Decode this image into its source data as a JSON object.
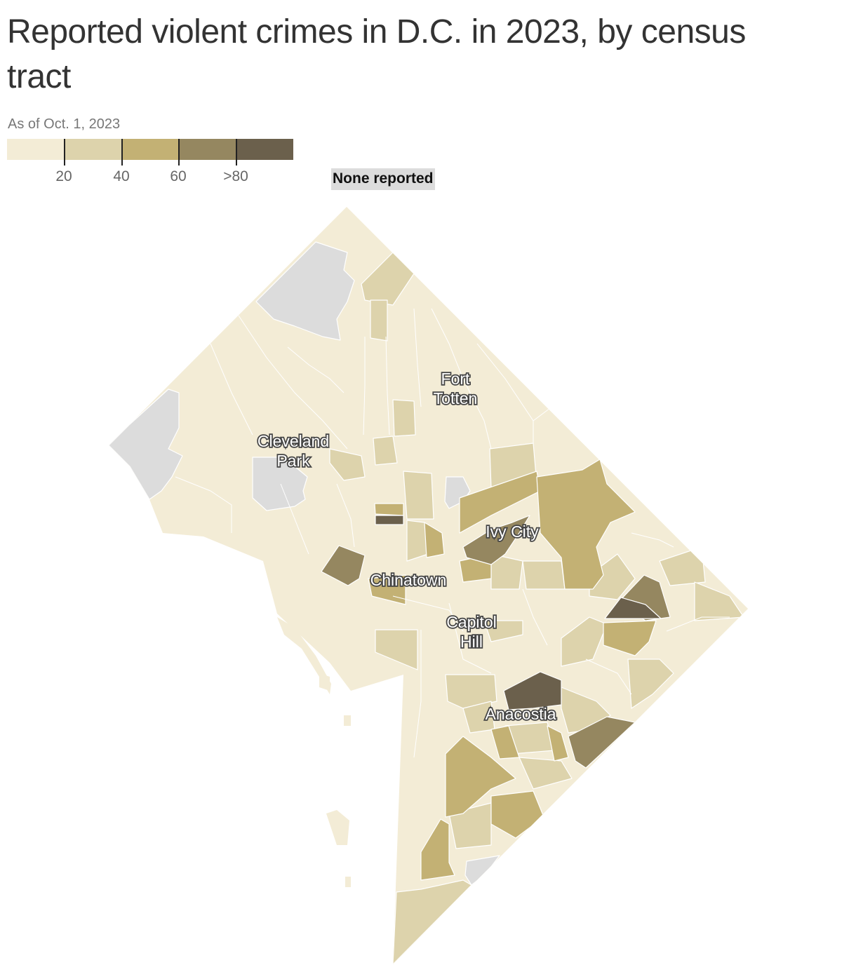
{
  "title": "Reported violent crimes in D.C. in 2023, by census tract",
  "subtitle": "As of Oct. 1, 2023",
  "legend": {
    "colors": [
      "#f3ecd6",
      "#ddd3ac",
      "#c3b174",
      "#958760",
      "#6b604c"
    ],
    "tick_labels": [
      "20",
      "40",
      "60",
      ">80"
    ],
    "thresholds": [
      20,
      40,
      60,
      80
    ],
    "none_label": "None reported",
    "none_color": "#dcdcdc"
  },
  "places": {
    "fort_totten": [
      "Fort",
      "Totten"
    ],
    "cleveland_park": [
      "Cleveland",
      "Park"
    ],
    "ivy_city": [
      "Ivy City"
    ],
    "chinatown": [
      "Chinatown"
    ],
    "capitol_hill": [
      "Capitol",
      "Hill"
    ],
    "anacostia": [
      "Anacostia"
    ]
  }
}
